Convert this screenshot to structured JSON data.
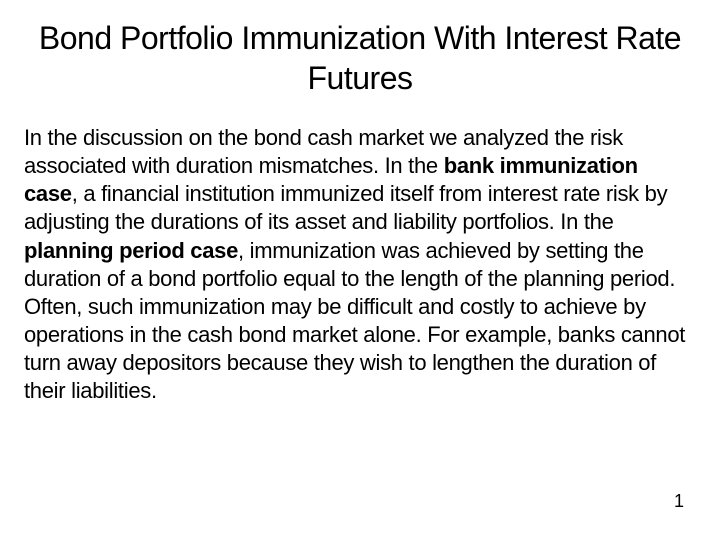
{
  "title": "Bond Portfolio Immunization With Interest Rate Futures",
  "body": {
    "run1": "In the discussion on the bond cash market we analyzed the risk associated with duration mismatches. In the ",
    "bold1": "bank immunization case",
    "run2": ", a financial institution immunized itself from interest rate risk by adjusting the durations of its asset and liability portfolios. In the ",
    "bold2": "planning period case",
    "run3": ", immunization was achieved by setting the duration of a bond portfolio equal to the length of the planning period. Often, such immunization may be difficult and costly to achieve by operations in the cash bond market alone. For example, banks cannot turn away depositors because they wish to lengthen the duration of their liabilities."
  },
  "page_number": "1",
  "colors": {
    "background": "#ffffff",
    "text": "#000000"
  },
  "typography": {
    "title_fontsize": 32,
    "body_fontsize": 22,
    "page_number_fontsize": 18,
    "font_family": "Tahoma, Verdana, Arial, sans-serif"
  }
}
